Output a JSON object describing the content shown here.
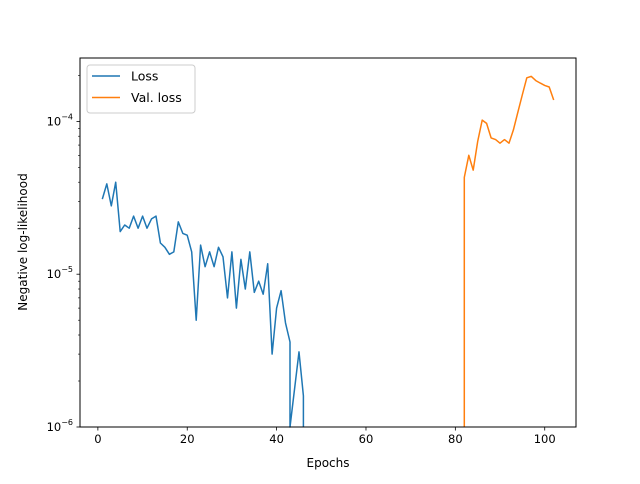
{
  "chart_data": {
    "type": "line",
    "xlabel": "Epochs",
    "ylabel": "Negative log-likelihood",
    "yscale": "log",
    "xlim": [
      -4,
      107
    ],
    "ylim": [
      1e-06,
      0.00026
    ],
    "x_ticks": [
      0,
      20,
      40,
      60,
      80,
      100
    ],
    "x_tick_labels": [
      "0",
      "20",
      "40",
      "60",
      "80",
      "100"
    ],
    "y_ticks": [
      1e-06,
      1e-05,
      0.0001
    ],
    "y_tick_labels": [
      {
        "base": "10",
        "exp": "−6"
      },
      {
        "base": "10",
        "exp": "−5"
      },
      {
        "base": "10",
        "exp": "−4"
      }
    ],
    "grid": false,
    "legend_position": "top-left",
    "series": [
      {
        "name": "Loss",
        "color": "#1f77b4",
        "x": [
          1,
          2,
          3,
          4,
          5,
          6,
          7,
          8,
          9,
          10,
          11,
          12,
          13,
          14,
          15,
          16,
          17,
          18,
          19,
          20,
          21,
          22,
          23,
          24,
          25,
          26,
          27,
          28,
          29,
          30,
          31,
          32,
          33,
          34,
          35,
          36,
          37,
          38,
          39,
          40,
          41,
          42,
          43,
          43,
          45,
          46,
          46
        ],
        "y": [
          3.1e-05,
          3.9e-05,
          2.8e-05,
          4e-05,
          1.9e-05,
          2.1e-05,
          2e-05,
          2.4e-05,
          2e-05,
          2.4e-05,
          2e-05,
          2.3e-05,
          2.4e-05,
          1.6e-05,
          1.5e-05,
          1.35e-05,
          1.4e-05,
          2.2e-05,
          1.85e-05,
          1.8e-05,
          1.4e-05,
          5e-06,
          1.55e-05,
          1.12e-05,
          1.4e-05,
          1.12e-05,
          1.5e-05,
          1.3e-05,
          7e-06,
          1.4e-05,
          6e-06,
          1.25e-05,
          8e-06,
          1.4e-05,
          7.6e-06,
          9e-06,
          7.4e-06,
          1.17e-05,
          3e-06,
          6e-06,
          7.8e-06,
          4.8e-06,
          3.6e-06,
          1e-06,
          3.1e-06,
          1.6e-06,
          1e-06
        ]
      },
      {
        "name": "Val. loss",
        "color": "#ff7f0e",
        "x": [
          82,
          82,
          83,
          84,
          85,
          86,
          87,
          88,
          89,
          90,
          91,
          92,
          93,
          94,
          95,
          96,
          97,
          98,
          99,
          100,
          101,
          102
        ],
        "y": [
          1e-06,
          4.3e-05,
          6e-05,
          4.8e-05,
          7.4e-05,
          0.000102,
          9.7e-05,
          7.8e-05,
          7.6e-05,
          7.2e-05,
          7.6e-05,
          7.2e-05,
          8.8e-05,
          0.000115,
          0.00015,
          0.000193,
          0.000197,
          0.000185,
          0.000178,
          0.000172,
          0.000168,
          0.000138
        ]
      }
    ]
  }
}
